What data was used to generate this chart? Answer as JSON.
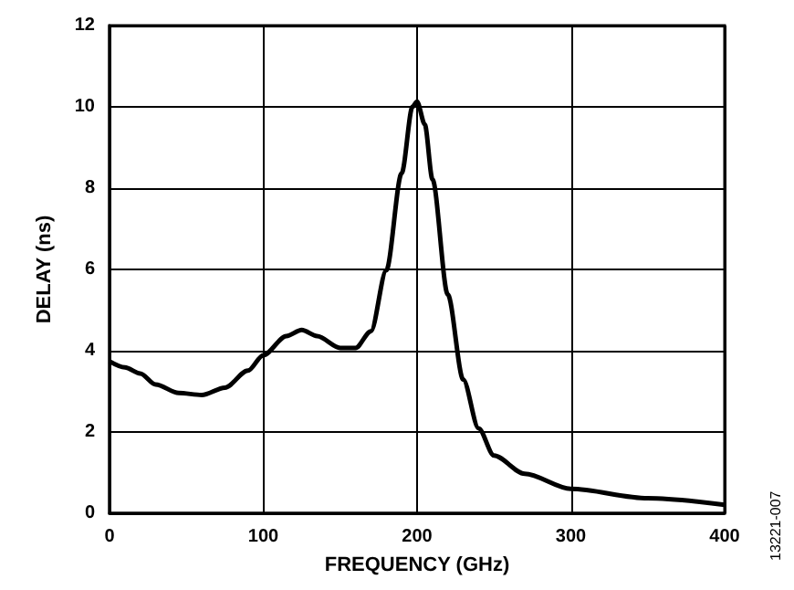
{
  "chart_data": {
    "type": "line",
    "xlabel": "FREQUENCY (GHz)",
    "ylabel": "DELAY (ns)",
    "annotations": [
      "13221-007"
    ],
    "xlim": [
      0,
      400
    ],
    "xticks": [
      0,
      100,
      200,
      300,
      400
    ],
    "ylim": [
      0,
      12
    ],
    "yticks": [
      0,
      2,
      4,
      6,
      8,
      10,
      12
    ],
    "grid": true,
    "marker": "none",
    "line_style": "solid",
    "series": [
      {
        "color": "#000000",
        "x": [
          0,
          10,
          20,
          30,
          45,
          60,
          75,
          90,
          100,
          115,
          125,
          135,
          150,
          160,
          170,
          180,
          190,
          197,
          200,
          205,
          210,
          220,
          230,
          240,
          250,
          270,
          300,
          350,
          400
        ],
        "values": [
          3.74,
          3.59,
          3.44,
          3.17,
          2.96,
          2.91,
          3.09,
          3.51,
          3.89,
          4.36,
          4.51,
          4.36,
          4.07,
          4.07,
          4.48,
          5.98,
          8.37,
          10.0,
          10.13,
          9.57,
          8.22,
          5.38,
          3.29,
          2.09,
          1.42,
          0.97,
          0.6,
          0.37,
          0.21
        ]
      }
    ]
  }
}
